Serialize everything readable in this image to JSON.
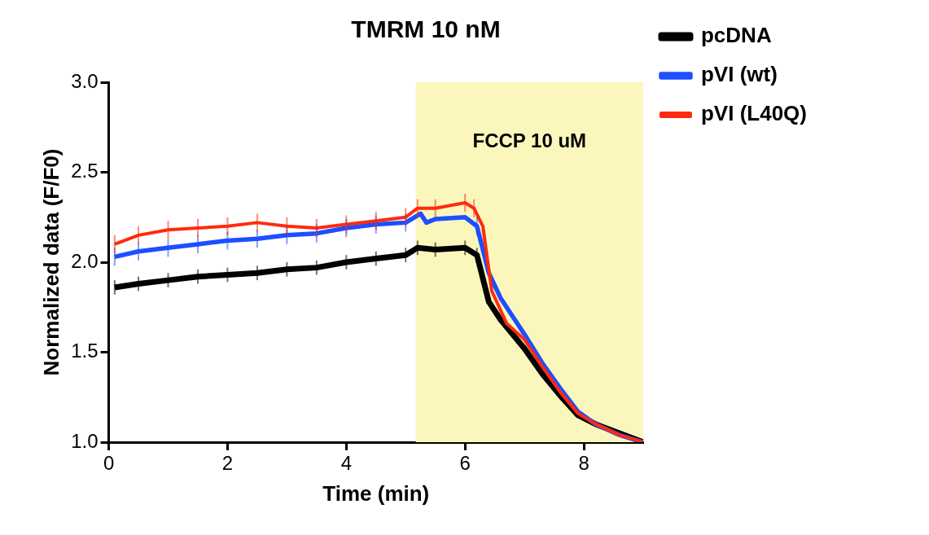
{
  "chart_data": {
    "type": "line",
    "title": "TMRM 10 nM",
    "xlabel": "Time (min)",
    "ylabel": "Normalized data (F/F0)",
    "xlim": [
      0,
      9
    ],
    "xticks": [
      0,
      2,
      4,
      6,
      8
    ],
    "ylim": [
      1.0,
      3.0
    ],
    "yticks": [
      {
        "value": 1.0,
        "label": "1.0"
      },
      {
        "value": 1.5,
        "label": "1.5"
      },
      {
        "value": 2.0,
        "label": "2.0"
      },
      {
        "value": 2.5,
        "label": "2.5"
      },
      {
        "value": 3.0,
        "label": "3.0"
      }
    ],
    "grid": false,
    "legend": "right",
    "marker": "none",
    "line_style": "solid",
    "bands": [
      {
        "axis": "x",
        "from": 5.17,
        "to": 9,
        "label": "FCCP 10 uM",
        "color": "#fbf7bc"
      }
    ],
    "series": [
      {
        "name": "pcDNA",
        "color": "#000000",
        "x": [
          0.1,
          0.5,
          1,
          1.5,
          2,
          2.5,
          3,
          3.5,
          4,
          4.5,
          5,
          5.2,
          5.5,
          6,
          6.2,
          6.4,
          6.6,
          7,
          7.3,
          7.6,
          7.9,
          8.2,
          8.6,
          9
        ],
        "values": [
          1.86,
          1.88,
          1.9,
          1.92,
          1.93,
          1.94,
          1.96,
          1.97,
          2.0,
          2.02,
          2.04,
          2.08,
          2.07,
          2.08,
          2.04,
          1.78,
          1.68,
          1.52,
          1.38,
          1.26,
          1.15,
          1.1,
          1.05,
          1.0
        ],
        "errors": [
          0.04,
          0.04,
          0.04,
          0.04,
          0.04,
          0.04,
          0.04,
          0.04,
          0.04,
          0.04,
          0.04,
          0.04,
          0.04,
          0.04,
          0.04,
          null,
          null,
          null,
          null,
          null,
          null,
          null,
          null,
          null
        ]
      },
      {
        "name": "pVI (wt)",
        "color": "#1d4fff",
        "x": [
          0.1,
          0.5,
          1,
          1.5,
          2,
          2.5,
          3,
          3.5,
          4,
          4.5,
          5,
          5.25,
          5.35,
          5.5,
          6,
          6.2,
          6.4,
          6.6,
          7,
          7.3,
          7.6,
          7.9,
          8.2,
          8.6,
          9
        ],
        "values": [
          2.03,
          2.06,
          2.08,
          2.1,
          2.12,
          2.13,
          2.15,
          2.16,
          2.19,
          2.21,
          2.22,
          2.27,
          2.22,
          2.24,
          2.25,
          2.2,
          1.94,
          1.8,
          1.6,
          1.44,
          1.3,
          1.17,
          1.1,
          1.04,
          1.0
        ],
        "errors": [
          0.05,
          0.05,
          0.05,
          0.05,
          0.05,
          0.05,
          0.05,
          0.05,
          0.05,
          0.05,
          0.05,
          null,
          null,
          null,
          null,
          0.05,
          null,
          null,
          null,
          null,
          null,
          null,
          null,
          null,
          null
        ]
      },
      {
        "name": "pVI (L40Q)",
        "color": "#ff2a0f",
        "x": [
          0.1,
          0.5,
          1,
          1.5,
          2,
          2.5,
          3,
          3.5,
          4,
          4.5,
          5,
          5.2,
          5.5,
          6,
          6.15,
          6.3,
          6.45,
          6.7,
          7,
          7.3,
          7.6,
          7.9,
          8.2,
          8.6,
          9
        ],
        "values": [
          2.1,
          2.15,
          2.18,
          2.19,
          2.2,
          2.22,
          2.2,
          2.19,
          2.21,
          2.23,
          2.25,
          2.3,
          2.3,
          2.33,
          2.3,
          2.2,
          1.84,
          1.66,
          1.57,
          1.42,
          1.28,
          1.16,
          1.1,
          1.04,
          1.0
        ],
        "errors": [
          0.05,
          0.05,
          0.05,
          0.05,
          0.05,
          0.05,
          0.05,
          0.05,
          0.05,
          0.05,
          0.05,
          0.05,
          0.05,
          0.05,
          0.05,
          null,
          null,
          null,
          null,
          null,
          null,
          null,
          null,
          null,
          null
        ]
      }
    ]
  }
}
